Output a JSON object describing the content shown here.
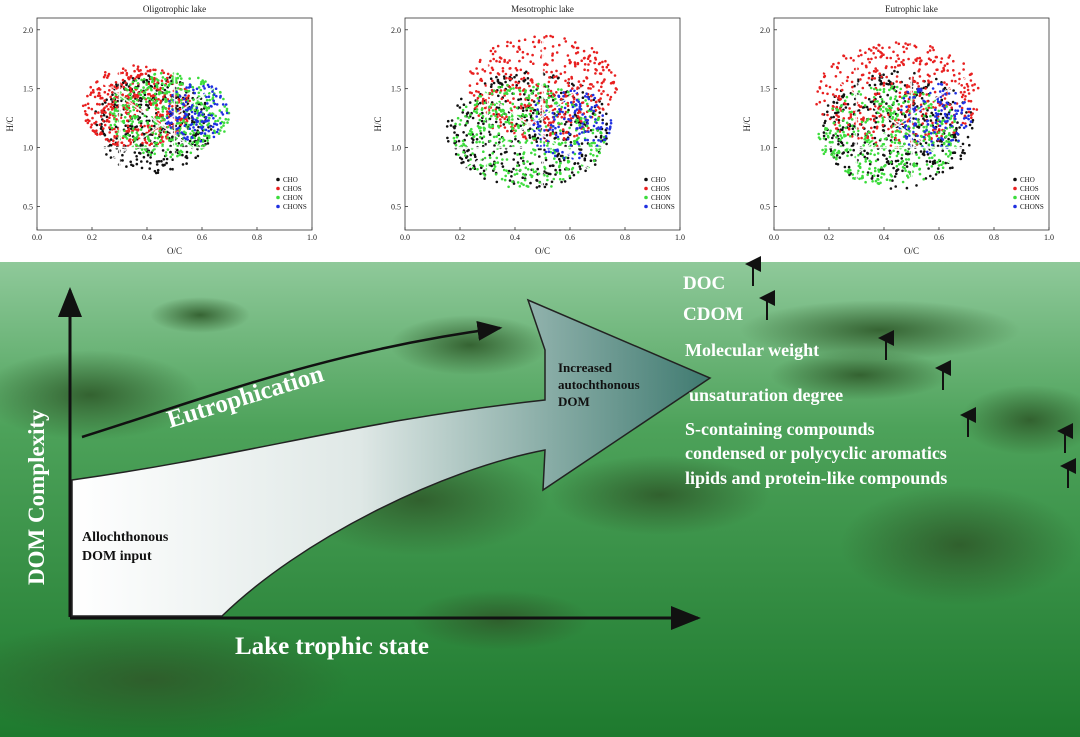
{
  "chart_data": [
    {
      "type": "scatter",
      "title": "Oligotrophic lake",
      "xlabel": "O/C",
      "ylabel": "H/C",
      "xlim": [
        0.0,
        1.0
      ],
      "ylim": [
        0.3,
        2.1
      ],
      "xticks": [
        "0.0",
        "0.2",
        "0.4",
        "0.6",
        "0.8",
        "1.0"
      ],
      "yticks": [
        "0.5",
        "1.0",
        "1.5",
        "2.0"
      ],
      "legend_position": "bottom-right",
      "series": [
        {
          "name": "CHO",
          "color": "#111111",
          "cx": 0.42,
          "cy": 1.2,
          "rx": 0.22,
          "ry": 0.42
        },
        {
          "name": "CHOS",
          "color": "#e82020",
          "cx": 0.36,
          "cy": 1.35,
          "rx": 0.2,
          "ry": 0.35
        },
        {
          "name": "CHON",
          "color": "#3cdc3c",
          "cx": 0.48,
          "cy": 1.28,
          "rx": 0.22,
          "ry": 0.36
        },
        {
          "name": "CHONS",
          "color": "#2030e0",
          "cx": 0.58,
          "cy": 1.3,
          "rx": 0.12,
          "ry": 0.25
        }
      ]
    },
    {
      "type": "scatter",
      "title": "Mesotrophic lake",
      "xlabel": "O/C",
      "ylabel": "H/C",
      "xlim": [
        0.0,
        1.0
      ],
      "ylim": [
        0.3,
        2.1
      ],
      "xticks": [
        "0.0",
        "0.2",
        "0.4",
        "0.6",
        "0.8",
        "1.0"
      ],
      "yticks": [
        "0.5",
        "1.0",
        "1.5",
        "2.0"
      ],
      "legend_position": "bottom-right",
      "series": [
        {
          "name": "CHO",
          "color": "#111111",
          "cx": 0.45,
          "cy": 1.15,
          "rx": 0.3,
          "ry": 0.5
        },
        {
          "name": "CHOS",
          "color": "#e82020",
          "cx": 0.5,
          "cy": 1.5,
          "rx": 0.28,
          "ry": 0.45
        },
        {
          "name": "CHON",
          "color": "#3cdc3c",
          "cx": 0.45,
          "cy": 1.1,
          "rx": 0.28,
          "ry": 0.45
        },
        {
          "name": "CHONS",
          "color": "#2030e0",
          "cx": 0.6,
          "cy": 1.2,
          "rx": 0.15,
          "ry": 0.3
        }
      ]
    },
    {
      "type": "scatter",
      "title": "Eutrophic lake",
      "xlabel": "O/C",
      "ylabel": "H/C",
      "xlim": [
        0.0,
        1.0
      ],
      "ylim": [
        0.3,
        2.1
      ],
      "xticks": [
        "0.0",
        "0.2",
        "0.4",
        "0.6",
        "0.8",
        "1.0"
      ],
      "yticks": [
        "0.5",
        "1.0",
        "1.5",
        "2.0"
      ],
      "legend_position": "bottom-right",
      "series": [
        {
          "name": "CHO",
          "color": "#111111",
          "cx": 0.45,
          "cy": 1.15,
          "rx": 0.28,
          "ry": 0.5
        },
        {
          "name": "CHOS",
          "color": "#e82020",
          "cx": 0.45,
          "cy": 1.45,
          "rx": 0.3,
          "ry": 0.45
        },
        {
          "name": "CHON",
          "color": "#3cdc3c",
          "cx": 0.42,
          "cy": 1.1,
          "rx": 0.26,
          "ry": 0.42
        },
        {
          "name": "CHONS",
          "color": "#2030e0",
          "cx": 0.58,
          "cy": 1.25,
          "rx": 0.14,
          "ry": 0.3
        }
      ]
    }
  ],
  "diagram": {
    "y_axis_label": "DOM Complexity",
    "x_axis_label": "Lake trophic state",
    "arrow_label": "Eutrophication",
    "start_label": [
      "Allochthonous",
      "DOM input"
    ],
    "end_label": [
      "Increased",
      "autochthonous",
      "DOM"
    ],
    "indicators": [
      "DOC",
      "CDOM",
      "Molecular weight",
      "unsaturation degree",
      "S-containing compounds",
      "condensed or polycyclic aromatics",
      "lipids and protein-like compounds"
    ],
    "colors": {
      "water": "#2f8a3c",
      "arrow_dark": "#3f7a70",
      "arrow_light": "#ffffff"
    }
  }
}
